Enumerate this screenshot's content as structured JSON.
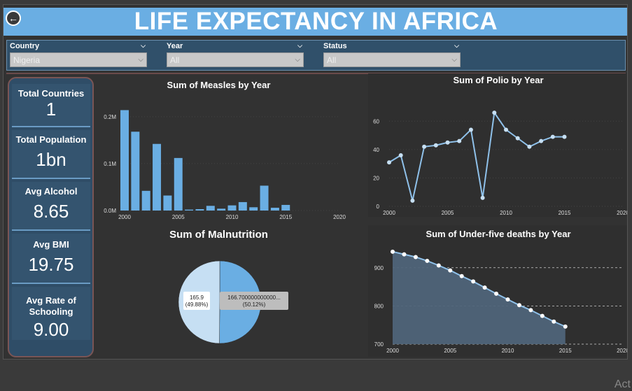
{
  "header": {
    "title": "LIFE EXPECTANCY IN AFRICA"
  },
  "filters": [
    {
      "label": "Country",
      "value": "Nigeria"
    },
    {
      "label": "Year",
      "value": "All"
    },
    {
      "label": "Status",
      "value": "All"
    }
  ],
  "kpis": [
    {
      "label": "Total Countries",
      "value": "1"
    },
    {
      "label": "Total Population",
      "value": "1bn"
    },
    {
      "label": "Avg Alcohol",
      "value": "8.65"
    },
    {
      "label": "Avg BMI",
      "value": "19.75"
    },
    {
      "label": "Avg Rate of Schooling",
      "value": "9.00"
    }
  ],
  "watermark": "Act",
  "colors": {
    "accent": "#6aaee3",
    "panel": "#2f4d67",
    "bar": "#6aaee3",
    "area": "#4f6479"
  },
  "chart_data": [
    {
      "type": "bar",
      "title": "Sum of Measles by Year",
      "x": [
        2000,
        2001,
        2002,
        2003,
        2004,
        2005,
        2006,
        2007,
        2008,
        2009,
        2010,
        2011,
        2012,
        2013,
        2014,
        2015
      ],
      "values": [
        214000,
        168000,
        42000,
        142000,
        32000,
        112000,
        2000,
        3000,
        10000,
        4000,
        11000,
        18000,
        7000,
        53000,
        6000,
        12000
      ],
      "xticks": [
        "2000",
        "2005",
        "2010",
        "2015",
        "2020"
      ],
      "yticks": [
        "0.0M",
        "0.1M",
        "0.2M"
      ],
      "ylim": [
        0,
        240000
      ]
    },
    {
      "type": "line",
      "title": "Sum of Polio by Year",
      "x": [
        2000,
        2001,
        2002,
        2003,
        2004,
        2005,
        2006,
        2007,
        2008,
        2009,
        2010,
        2011,
        2012,
        2013,
        2014,
        2015
      ],
      "values": [
        31,
        36,
        4,
        42,
        43,
        45,
        46,
        54,
        6,
        66,
        54,
        48,
        42,
        46,
        49,
        49
      ],
      "xticks": [
        "2000",
        "2005",
        "2010",
        "2015",
        "2020"
      ],
      "yticks": [
        "0",
        "20",
        "40",
        "60"
      ],
      "ylim": [
        0,
        70
      ]
    },
    {
      "type": "pie",
      "title": "Sum of Malnutrition",
      "slices": [
        {
          "value": 165.9,
          "label": "165.9",
          "pct": "(49.88%)",
          "color": "#c6dff3"
        },
        {
          "value": 166.7,
          "label": "166.700000000000...",
          "pct": "(50.12%)",
          "color": "#6aaee3"
        }
      ]
    },
    {
      "type": "area",
      "title": "Sum of Under-five deaths by Year",
      "x": [
        2000,
        2001,
        2002,
        2003,
        2004,
        2005,
        2006,
        2007,
        2008,
        2009,
        2010,
        2011,
        2012,
        2013,
        2014,
        2015
      ],
      "values": [
        942,
        935,
        928,
        918,
        906,
        893,
        878,
        864,
        848,
        832,
        817,
        802,
        789,
        774,
        759,
        746
      ],
      "xticks": [
        "2000",
        "2005",
        "2010",
        "2015",
        "2020"
      ],
      "yticks": [
        "700",
        "800",
        "900"
      ],
      "ylim": [
        700,
        960
      ]
    }
  ]
}
